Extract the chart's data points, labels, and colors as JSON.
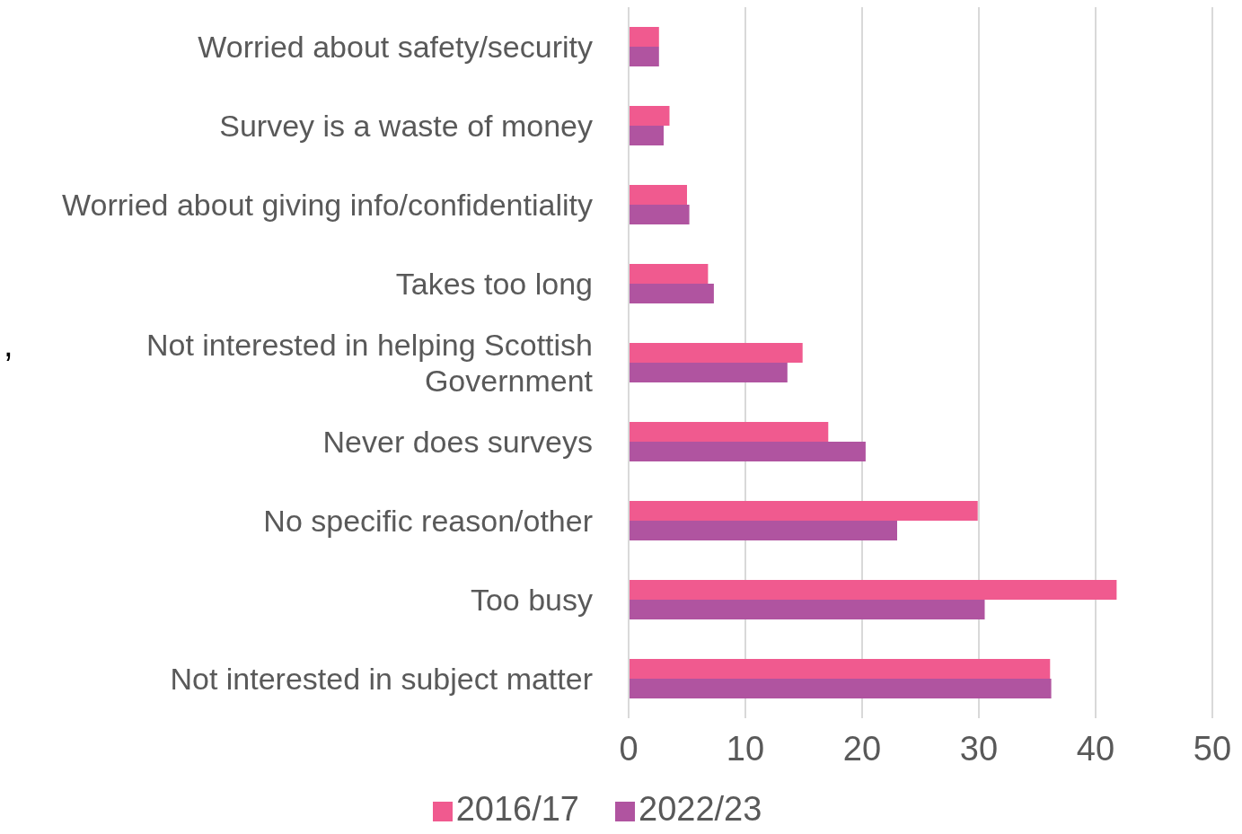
{
  "chart_data": {
    "type": "bar",
    "orientation": "horizontal",
    "categories": [
      "Worried about safety/security",
      "Survey is a waste of money",
      "Worried about giving info/confidentiality",
      "Takes too long",
      "Not interested in helping Scottish Government",
      "Never does surveys",
      "No specific reason/other",
      "Too busy",
      "Not interested in subject matter"
    ],
    "series": [
      {
        "name": "2016/17",
        "color": "#f05a8f",
        "values": [
          2.6,
          3.5,
          5.0,
          6.8,
          14.9,
          17.1,
          29.9,
          41.8,
          36.1
        ]
      },
      {
        "name": "2022/23",
        "color": "#b054a0",
        "values": [
          2.6,
          3.0,
          5.2,
          7.3,
          13.6,
          20.3,
          23.0,
          30.5,
          36.2
        ]
      }
    ],
    "xlim": [
      0,
      50
    ],
    "xticks": [
      0,
      10,
      20,
      30,
      40,
      50
    ],
    "grid": "x",
    "legend": "bottom",
    "annotations": [
      ","
    ]
  }
}
